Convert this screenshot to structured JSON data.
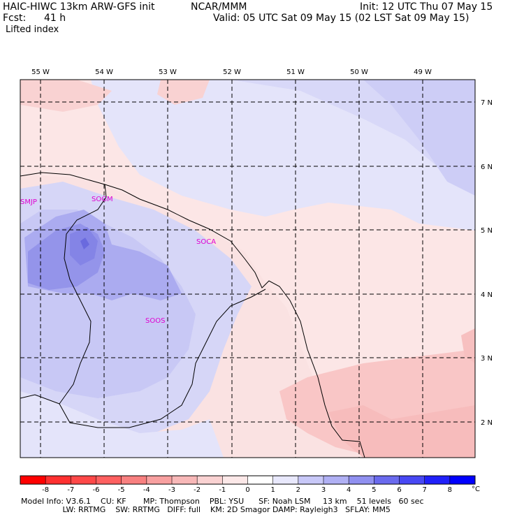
{
  "header": {
    "model": "HAIC-HIWC 13km ARW-GFS init",
    "org": "NCAR/MMM",
    "init": "Init: 12 UTC Thu 07 May 15",
    "fcst_label": "Fcst:",
    "fcst_value": "41 h",
    "valid": "Valid: 05 UTC Sat 09 May 15 (02 LST Sat 09 May 15)",
    "field": "Lifted index"
  },
  "map": {
    "lon_labels": [
      "55 W",
      "54 W",
      "53 W",
      "52 W",
      "51 W",
      "50 W",
      "49 W"
    ],
    "lat_labels": [
      "7 N",
      "6 N",
      "5 N",
      "4 N",
      "3 N",
      "2 N"
    ],
    "stations": [
      "SMJP",
      "SOGM",
      "SOCA",
      "SOOS"
    ],
    "colors": {
      "warm": "#fbd4d4",
      "warm_strong": "#f7c0c0",
      "cool_1": "#e4e4fa",
      "cool_2": "#cdcdf6",
      "cool_3": "#a8a8f0",
      "cool_4": "#8c8ce8"
    }
  },
  "colorbar": {
    "labels": [
      "-8",
      "-7",
      "-6",
      "-5",
      "-4",
      "-3",
      "-2",
      "-1",
      "0",
      "1",
      "2",
      "3",
      "4",
      "5",
      "6",
      "7",
      "8"
    ],
    "unit": "°C",
    "colors": [
      "#ff0000",
      "#ff3030",
      "#ff4848",
      "#ff6060",
      "#f88080",
      "#f8a0a0",
      "#f8b8b8",
      "#fad2d2",
      "#fce8e8",
      "#ffffff",
      "#e8e8fc",
      "#c8c8f8",
      "#b0b0f4",
      "#9090f0",
      "#6a6aee",
      "#4848f4",
      "#2020fa",
      "#0000ff"
    ]
  },
  "footer": {
    "line1": "Model Info: V3.6.1    CU: KF       MP: Thompson    PBL: YSU      SF: Noah LSM     13 km    51 levels   60 sec",
    "line2": "                 LW: RRTMG    SW: RRTMG   DIFF: full    KM: 2D Smagor DAMP: Rayleigh3   SFLAY: MM5"
  }
}
